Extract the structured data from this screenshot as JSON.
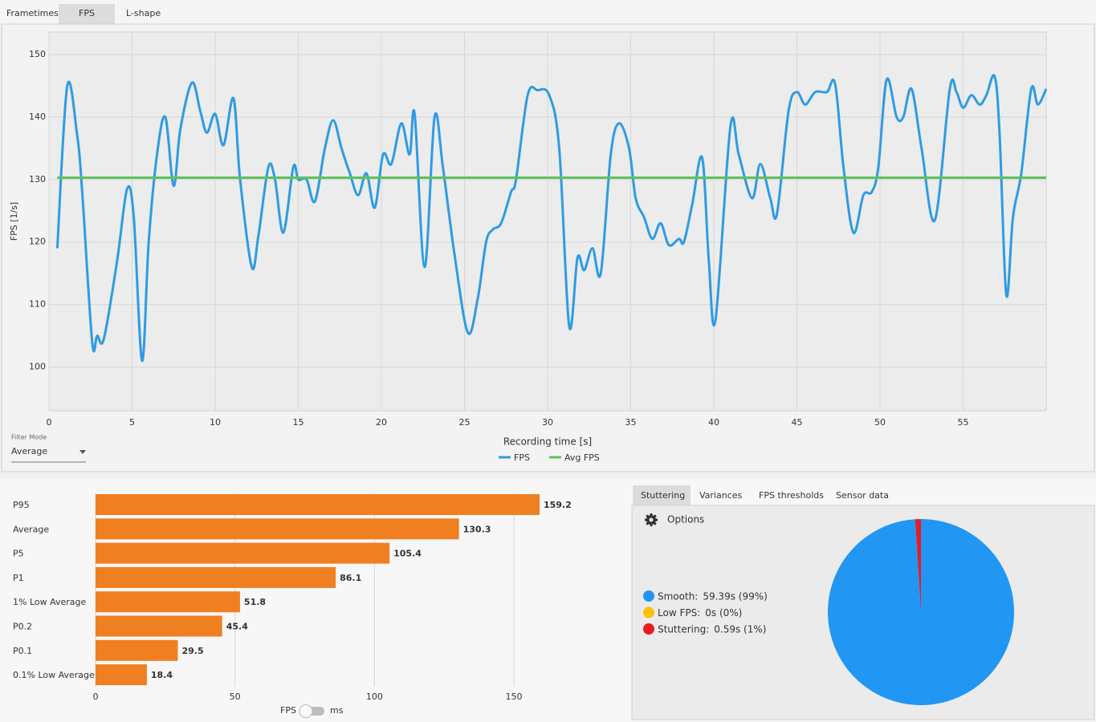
{
  "top_tabs": [
    "Frametimes",
    "FPS",
    "L-shape"
  ],
  "filter_mode": {
    "label": "Filter Mode",
    "value": "Average"
  },
  "unit_toggle": {
    "left": "FPS",
    "right": "ms"
  },
  "stutter_tabs": [
    "Stuttering",
    "Variances",
    "FPS thresholds",
    "Sensor data"
  ],
  "options_label": "Options",
  "chart_data": [
    {
      "type": "line",
      "x_label": "Recording time [s]",
      "y_label": "FPS [1/s]",
      "xlim": [
        0,
        60
      ],
      "ylim": [
        93,
        153.6
      ],
      "xticks": [
        0,
        5,
        10,
        15,
        20,
        25,
        30,
        35,
        40,
        45,
        50,
        55
      ],
      "yticks": [
        100,
        110,
        120,
        130,
        140,
        150
      ],
      "grid": true,
      "legend": "bottom",
      "series": [
        {
          "name": "FPS",
          "color": "#2e9be3",
          "x": [
            0.5,
            1.1,
            1.7,
            2.0,
            2.6,
            2.9,
            3.3,
            4.1,
            4.7,
            5.1,
            5.6,
            6.0,
            6.5,
            7.0,
            7.5,
            7.9,
            8.6,
            9.1,
            9.5,
            10.0,
            10.5,
            11.1,
            11.5,
            12.2,
            12.6,
            13.2,
            13.6,
            14.1,
            14.7,
            15.0,
            15.5,
            16.0,
            16.6,
            17.1,
            17.6,
            18.1,
            18.6,
            19.1,
            19.6,
            20.1,
            20.6,
            21.2,
            21.7,
            22.0,
            22.6,
            23.2,
            23.7,
            24.4,
            25.2,
            25.8,
            26.3,
            26.7,
            27.2,
            27.8,
            28.1,
            28.8,
            29.4,
            30.1,
            30.7,
            31.3,
            31.8,
            32.2,
            32.7,
            33.2,
            33.8,
            34.3,
            34.9,
            35.3,
            35.8,
            36.3,
            36.8,
            37.3,
            37.9,
            38.2,
            38.7,
            39.3,
            39.7,
            40.1,
            41.0,
            41.5,
            42.3,
            42.8,
            43.4,
            43.8,
            44.5,
            45.0,
            45.5,
            46.1,
            46.8,
            47.3,
            47.8,
            48.4,
            49.0,
            49.5,
            49.9,
            50.4,
            51.0,
            51.4,
            51.9,
            52.5,
            53.3,
            54.2,
            54.6,
            55.0,
            55.5,
            56.0,
            56.4,
            56.9,
            57.2,
            57.6,
            58.0,
            58.5,
            59.1,
            59.5,
            60.0
          ],
          "values": [
            119,
            145,
            137,
            128,
            104,
            105,
            104.5,
            117,
            128.5,
            124,
            101,
            120,
            134,
            140,
            129,
            138,
            145.5,
            141,
            137.5,
            140.5,
            135.5,
            143,
            130,
            116,
            121,
            132,
            130,
            121.5,
            132,
            130,
            130,
            126.5,
            135,
            139.5,
            135,
            131,
            127.5,
            131,
            125.5,
            134,
            132.5,
            139,
            134,
            140.5,
            116,
            140,
            132,
            118,
            105.5,
            111,
            120,
            122,
            123,
            128,
            130,
            143.5,
            144.3,
            143.5,
            135,
            106.5,
            117.5,
            115.5,
            119,
            115,
            134,
            139,
            135,
            127,
            124,
            120.5,
            123,
            119.5,
            120.5,
            120,
            126,
            133.5,
            117,
            107.5,
            138.5,
            134,
            127,
            132.5,
            127,
            124.5,
            141,
            144,
            142,
            144,
            144,
            145.3,
            132,
            121.5,
            127.5,
            128,
            132,
            146,
            140,
            140,
            144.5,
            135,
            123.5,
            144.5,
            144,
            141.5,
            143.5,
            142,
            143.5,
            146.5,
            137,
            111.5,
            124,
            131,
            144.5,
            142,
            144.5
          ]
        },
        {
          "name": "Avg FPS",
          "color": "#5cc35c",
          "x": [
            0.5,
            60.0
          ],
          "values": [
            130.3,
            130.3
          ]
        }
      ]
    },
    {
      "type": "hbar",
      "categories": [
        "P95",
        "Average",
        "P5",
        "P1",
        "1% Low Average",
        "P0.2",
        "P0.1",
        "0.1% Low Average"
      ],
      "values": [
        159.2,
        130.3,
        105.4,
        86.1,
        51.8,
        45.4,
        29.5,
        18.4
      ],
      "color": "#f07f22",
      "xlim": [
        0,
        190
      ],
      "xticks": [
        0,
        50,
        100,
        150
      ],
      "grid": true
    },
    {
      "type": "pie",
      "categories": [
        "Smooth:",
        "Low FPS:",
        "Stuttering:"
      ],
      "values": [
        59.39,
        0,
        0.59
      ],
      "value_labels": [
        "59.39s (99%)",
        "0s (0%)",
        "0.59s (1%)"
      ],
      "colors": [
        "#2196f3",
        "#ffc107",
        "#e51c23"
      ]
    }
  ]
}
